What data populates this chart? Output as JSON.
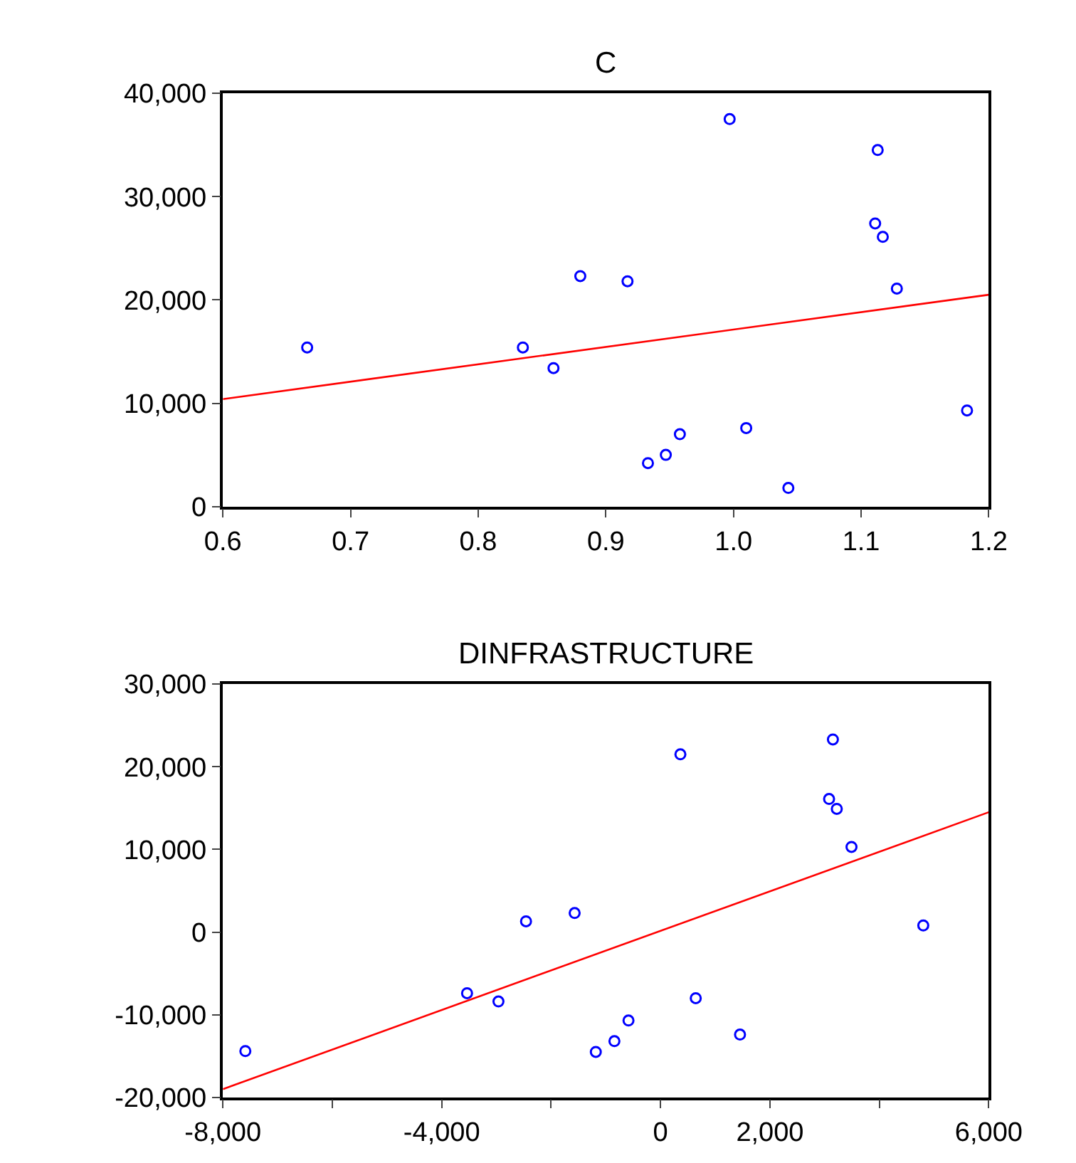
{
  "chart_data": [
    {
      "type": "scatter",
      "title": "C",
      "xlim": [
        0.6,
        1.2
      ],
      "xticks": [
        {
          "value": 0.6,
          "label": "0.6"
        },
        {
          "value": 0.7,
          "label": "0.7"
        },
        {
          "value": 0.8,
          "label": "0.8"
        },
        {
          "value": 0.9,
          "label": "0.9"
        },
        {
          "value": 1.0,
          "label": "1.0"
        },
        {
          "value": 1.1,
          "label": "1.1"
        },
        {
          "value": 1.2,
          "label": "1.2"
        }
      ],
      "ylim": [
        0,
        40000
      ],
      "yticks": [
        {
          "value": 0,
          "label": "0"
        },
        {
          "value": 10000,
          "label": "10,000"
        },
        {
          "value": 20000,
          "label": "20,000"
        },
        {
          "value": 30000,
          "label": "30,000"
        },
        {
          "value": 40000,
          "label": "40,000"
        }
      ],
      "series": [
        {
          "color": "#0000ff",
          "marker": "circle",
          "x": [
            0.666,
            0.835,
            0.859,
            0.88,
            0.917,
            0.933,
            0.947,
            0.958,
            0.997,
            1.01,
            1.043,
            1.111,
            1.113,
            1.117,
            1.128,
            1.183
          ],
          "values": [
            15400,
            15400,
            13400,
            22300,
            21800,
            4200,
            5000,
            7000,
            37500,
            7600,
            1800,
            27400,
            34500,
            26100,
            21100,
            9300
          ]
        },
        {
          "type": "line",
          "color": "#ff0000",
          "line_style": "solid",
          "x": [
            0.6,
            1.2
          ],
          "values": [
            10400,
            20500
          ]
        }
      ]
    },
    {
      "type": "scatter",
      "title": "DINFRASTRUCTURE",
      "xlim": [
        -8000,
        6000
      ],
      "xticks": [
        {
          "value": -8000,
          "label": "-8,000"
        },
        {
          "value": -6000,
          "label": null
        },
        {
          "value": -4000,
          "label": "-4,000"
        },
        {
          "value": -2000,
          "label": null
        },
        {
          "value": 0,
          "label": "0"
        },
        {
          "value": 2000,
          "label": "2,000"
        },
        {
          "value": 4000,
          "label": null
        },
        {
          "value": 6000,
          "label": "6,000"
        }
      ],
      "ylim": [
        -20000,
        30000
      ],
      "yticks": [
        {
          "value": -20000,
          "label": "-20,000"
        },
        {
          "value": -10000,
          "label": "-10,000"
        },
        {
          "value": 0,
          "label": "0"
        },
        {
          "value": 10000,
          "label": "10,000"
        },
        {
          "value": 20000,
          "label": "20,000"
        },
        {
          "value": 30000,
          "label": "30,000"
        }
      ],
      "series": [
        {
          "color": "#0000ff",
          "marker": "circle",
          "x": [
            -7590,
            -3537,
            -2963,
            -2459,
            -1570,
            -1183,
            -843,
            -586,
            363,
            644,
            1453,
            3081,
            3151,
            3222,
            3491,
            4803
          ],
          "values": [
            -14400,
            -7400,
            -8400,
            1300,
            2300,
            -14500,
            -13200,
            -10700,
            21500,
            -8000,
            -12400,
            16100,
            23300,
            14900,
            10300,
            800
          ]
        },
        {
          "type": "line",
          "color": "#ff0000",
          "line_style": "solid",
          "x": [
            -8000,
            6000
          ],
          "values": [
            -19000,
            14500
          ]
        }
      ]
    }
  ]
}
